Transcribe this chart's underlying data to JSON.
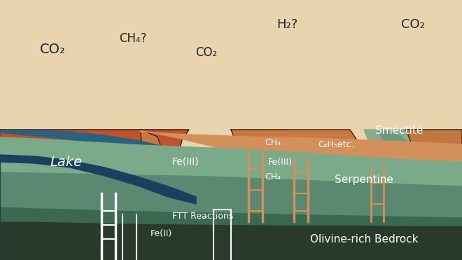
{
  "figsize": [
    6.6,
    3.71
  ],
  "dpi": 100,
  "bg_sky": "#e8d5b0",
  "mountain_colors": {
    "left_dark": "#c0522a",
    "left_mid": "#d4784a",
    "center": "#c97840",
    "right_green": "#7a9e8a",
    "right_peak": "#c07840"
  },
  "layer_colors": {
    "lake": "#2a6080",
    "lake_dark": "#1a4060",
    "smectite": "#d4905a",
    "serpentine_light": "#7aaa8a",
    "serpentine_mid": "#5a8870",
    "serpentine_dark": "#3a6850",
    "bedrock": "#2a3a2a"
  },
  "line_color": "#ffffff",
  "mountain_outline": "#111111",
  "river_color": "#5580a0",
  "labels": {
    "co2_1": "CO₂",
    "ch4": "CH₄?",
    "co2_2": "CO₂",
    "h2": "H₂?",
    "co2_3": "CO₂",
    "fe3_mountain": "Fe(III)",
    "lake": "Lake",
    "smectite": "Smectite",
    "ch4_upper": "CH₄",
    "c6h5": "C₆H₅etc.",
    "fe3_sub": "Fe(III)",
    "ch4_lower": "CH₄",
    "serpentine": "Serpentine",
    "ftt": "FTT Reactions",
    "fe2": "Fe(II)",
    "bedrock": "Olivine-rich Bedrock"
  }
}
